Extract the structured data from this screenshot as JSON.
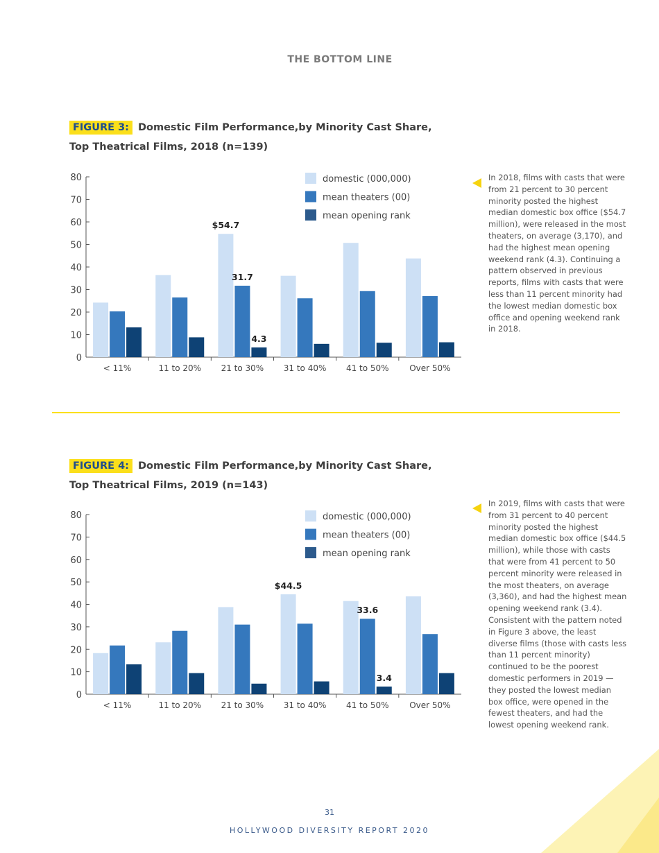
{
  "header": "THE BOTTOM LINE",
  "colors": {
    "domestic": "#cde0f5",
    "theaters": "#3578bd",
    "rank": "#0e4275",
    "accent": "#fbdf1b"
  },
  "figures": [
    {
      "tag": "FIGURE 3:",
      "title_line1": "Domestic Film Performance,by Minority Cast Share,",
      "title_line2": "Top Theatrical Films, 2018 (n=139)",
      "note": "In 2018, films with casts that were from 21 percent to 30 percent minority posted the highest median domestic box office ($54.7 million), were released in the most theaters, on average (3,170), and had the highest mean opening weekend rank (4.3).  Continuing a pattern observed in previous reports, films with casts that were less than 11 percent minority had the lowest median domestic box office and opening weekend rank in 2018."
    },
    {
      "tag": "FIGURE 4:",
      "title_line1": "Domestic Film Performance,by Minority Cast Share,",
      "title_line2": "Top Theatrical Films, 2019 (n=143)",
      "note": "In 2019, films with casts that were from 31 percent to 40 percent minority posted the highest median domestic box office ($44.5 million), while those with casts that were from 41 percent to 50 percent minority were released in the most theaters, on average (3,360), and had the highest mean opening weekend rank (3.4). Consistent with the pattern noted in Figure 3 above, the least diverse films (those with casts less than 11 percent minority) continued to be the poorest domestic performers in 2019 — they posted the lowest median box office, were opened in the fewest theaters, and had the lowest opening weekend rank."
    }
  ],
  "chart_data": [
    {
      "type": "bar",
      "categories": [
        "< 11%",
        "11 to 20%",
        "21 to 30%",
        "31 to 40%",
        "41 to 50%",
        "Over 50%"
      ],
      "series": [
        {
          "name": "domestic (000,000)",
          "values": [
            24.2,
            36.4,
            54.7,
            36.1,
            50.7,
            43.8
          ],
          "labels": [
            null,
            null,
            "$54.7",
            null,
            null,
            null
          ]
        },
        {
          "name": "mean theaters (00)",
          "values": [
            20.3,
            26.5,
            31.7,
            26.1,
            29.3,
            27.1
          ],
          "labels": [
            null,
            null,
            "31.7",
            null,
            null,
            null
          ]
        },
        {
          "name": "mean opening rank",
          "values": [
            13.2,
            8.8,
            4.3,
            5.9,
            6.4,
            6.6
          ],
          "labels": [
            null,
            null,
            "4.3",
            null,
            null,
            null
          ]
        }
      ],
      "yticks": [
        "0",
        "10",
        "20",
        "30",
        "40",
        "50",
        "60",
        "70",
        "80"
      ],
      "ylim": [
        0,
        80
      ],
      "legend": "top-right",
      "grid": false
    },
    {
      "type": "bar",
      "categories": [
        "< 11%",
        "11 to 20%",
        "21 to 30%",
        "31 to 40%",
        "41 to 50%",
        "Over 50%"
      ],
      "series": [
        {
          "name": "domestic (000,000)",
          "values": [
            18.3,
            23.1,
            38.8,
            44.5,
            41.5,
            43.6
          ],
          "labels": [
            null,
            null,
            null,
            "$44.5",
            null,
            null
          ]
        },
        {
          "name": "mean theaters (00)",
          "values": [
            21.7,
            28.2,
            31.0,
            31.4,
            33.6,
            26.8
          ],
          "labels": [
            null,
            null,
            null,
            null,
            "33.6",
            null
          ]
        },
        {
          "name": "mean opening rank",
          "values": [
            13.3,
            9.4,
            4.7,
            5.7,
            3.4,
            9.4
          ],
          "labels": [
            null,
            null,
            null,
            null,
            "3.4",
            null
          ]
        }
      ],
      "yticks": [
        "0",
        "10",
        "20",
        "30",
        "40",
        "50",
        "60",
        "70",
        "80"
      ],
      "ylim": [
        0,
        80
      ],
      "legend": "top-right",
      "grid": false
    }
  ],
  "footer": {
    "page_number": "31",
    "report": "HOLLYWOOD DIVERSITY REPORT 2020"
  }
}
